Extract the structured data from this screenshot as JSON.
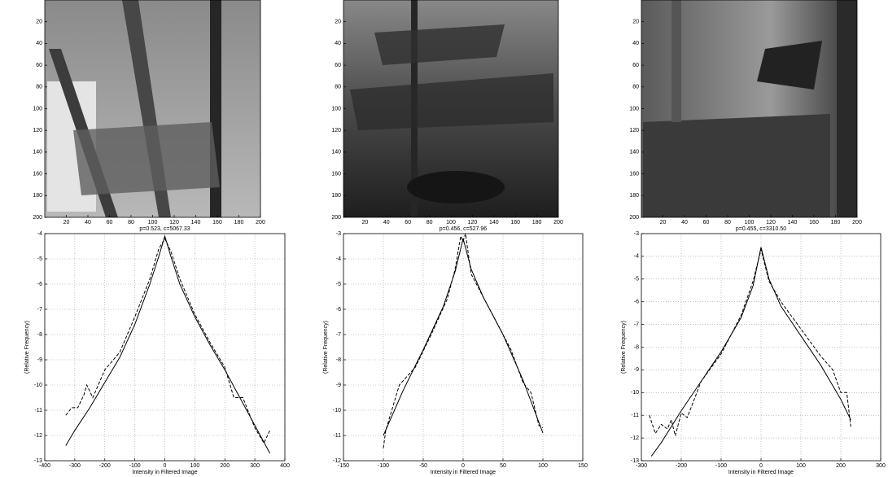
{
  "chart_data": [
    {
      "type": "image",
      "xlim": [
        0,
        200
      ],
      "ylim": [
        0,
        200
      ],
      "y_reversed": true,
      "xticks": [
        20,
        40,
        60,
        80,
        100,
        120,
        140,
        160,
        180,
        200
      ],
      "yticks": [
        20,
        40,
        60,
        80,
        100,
        120,
        140,
        160,
        180,
        200
      ]
    },
    {
      "type": "image",
      "xlim": [
        0,
        200
      ],
      "ylim": [
        0,
        200
      ],
      "y_reversed": true,
      "xticks": [
        20,
        40,
        60,
        80,
        100,
        120,
        140,
        160,
        180,
        200
      ],
      "yticks": [
        20,
        40,
        60,
        80,
        100,
        120,
        140,
        160,
        180,
        200
      ]
    },
    {
      "type": "image",
      "xlim": [
        0,
        200
      ],
      "ylim": [
        0,
        200
      ],
      "y_reversed": true,
      "xticks": [
        20,
        40,
        60,
        80,
        100,
        120,
        140,
        160,
        180,
        200
      ],
      "yticks": [
        20,
        40,
        60,
        80,
        100,
        120,
        140,
        160,
        180,
        200
      ]
    },
    {
      "type": "line",
      "title": "p=0.523, c=5067.33",
      "x_label": "Intensity in Filtered Image",
      "y_label": "(Relative Frequency)",
      "xlim": [
        -400,
        400
      ],
      "ylim": [
        -13,
        -4
      ],
      "xticks": [
        -400,
        -300,
        -200,
        -100,
        0,
        100,
        200,
        300,
        400
      ],
      "yticks": [
        -13,
        -12,
        -11,
        -10,
        -9,
        -8,
        -7,
        -6,
        -5,
        -4
      ],
      "grid": true,
      "series": [
        {
          "color": "#000000",
          "dashed": false,
          "x": [
            -330,
            -300,
            -250,
            -200,
            -150,
            -100,
            -50,
            -20,
            0,
            20,
            50,
            100,
            150,
            200,
            250,
            300,
            350
          ],
          "values": [
            -12.4,
            -11.8,
            -10.9,
            -9.9,
            -8.9,
            -7.6,
            -6.0,
            -4.9,
            -4.1,
            -4.9,
            -6.0,
            -7.3,
            -8.4,
            -9.4,
            -10.5,
            -11.6,
            -12.7
          ]
        },
        {
          "color": "#000000",
          "dashed": true,
          "x": [
            -330,
            -310,
            -290,
            -270,
            -260,
            -240,
            -200,
            -150,
            -100,
            -50,
            -20,
            0,
            20,
            50,
            100,
            150,
            200,
            230,
            260,
            300,
            330,
            350
          ],
          "values": [
            -11.2,
            -10.9,
            -10.9,
            -10.4,
            -10.0,
            -10.5,
            -9.4,
            -8.7,
            -7.3,
            -5.8,
            -4.6,
            -4.2,
            -4.7,
            -5.8,
            -7.2,
            -8.3,
            -9.3,
            -10.5,
            -10.5,
            -11.7,
            -12.3,
            -11.8
          ]
        }
      ]
    },
    {
      "type": "line",
      "title": "p=0.456, c=527.96",
      "x_label": "Intensity in Filtered Image",
      "y_label": "(Relative Frequency)",
      "xlim": [
        -150,
        150
      ],
      "ylim": [
        -12,
        -3
      ],
      "xticks": [
        -150,
        -100,
        -50,
        0,
        50,
        100,
        150
      ],
      "yticks": [
        -12,
        -11,
        -10,
        -9,
        -8,
        -7,
        -6,
        -5,
        -4,
        -3
      ],
      "grid": true,
      "series": [
        {
          "color": "#000000",
          "dashed": false,
          "x": [
            -100,
            -75,
            -50,
            -25,
            -10,
            0,
            10,
            25,
            50,
            75,
            100
          ],
          "values": [
            -11.0,
            -9.2,
            -7.6,
            -5.9,
            -4.5,
            -3.2,
            -4.4,
            -5.5,
            -7.0,
            -8.8,
            -10.9
          ]
        },
        {
          "color": "#000000",
          "dashed": true,
          "x": [
            -100,
            -97,
            -80,
            -60,
            -40,
            -20,
            -10,
            -3,
            0,
            3,
            10,
            20,
            40,
            60,
            75,
            85,
            95,
            100
          ],
          "values": [
            -11.5,
            -10.8,
            -9.0,
            -8.3,
            -7.0,
            -5.6,
            -4.4,
            -3.1,
            -3.3,
            -3.0,
            -4.6,
            -5.2,
            -6.4,
            -7.6,
            -8.9,
            -9.3,
            -10.6,
            -10.7
          ]
        }
      ]
    },
    {
      "type": "line",
      "title": "p=0.455, c=3310.50",
      "x_label": "Intensity in Filtered Image",
      "y_label": "(Relative Frequency)",
      "xlim": [
        -300,
        300
      ],
      "ylim": [
        -13,
        -3
      ],
      "xticks": [
        -300,
        -200,
        -100,
        0,
        100,
        200,
        300
      ],
      "yticks": [
        -13,
        -12,
        -11,
        -10,
        -9,
        -8,
        -7,
        -6,
        -5,
        -4,
        -3
      ],
      "grid": true,
      "series": [
        {
          "color": "#000000",
          "dashed": false,
          "x": [
            -275,
            -250,
            -200,
            -150,
            -100,
            -50,
            -20,
            0,
            20,
            50,
            100,
            150,
            200,
            225
          ],
          "values": [
            -12.8,
            -12.2,
            -10.8,
            -9.5,
            -8.2,
            -6.7,
            -5.3,
            -3.6,
            -5.0,
            -6.2,
            -7.5,
            -8.8,
            -10.3,
            -11.2
          ]
        },
        {
          "color": "#000000",
          "dashed": true,
          "x": [
            -280,
            -265,
            -250,
            -235,
            -225,
            -215,
            -200,
            -185,
            -150,
            -100,
            -50,
            -20,
            0,
            20,
            50,
            100,
            150,
            180,
            200,
            215,
            225
          ],
          "values": [
            -11.0,
            -11.8,
            -11.4,
            -11.6,
            -11.2,
            -11.9,
            -10.9,
            -11.1,
            -9.5,
            -8.3,
            -6.6,
            -5.1,
            -3.7,
            -5.1,
            -6.0,
            -7.2,
            -8.4,
            -9.0,
            -10.0,
            -10.0,
            -11.5
          ]
        }
      ]
    }
  ]
}
